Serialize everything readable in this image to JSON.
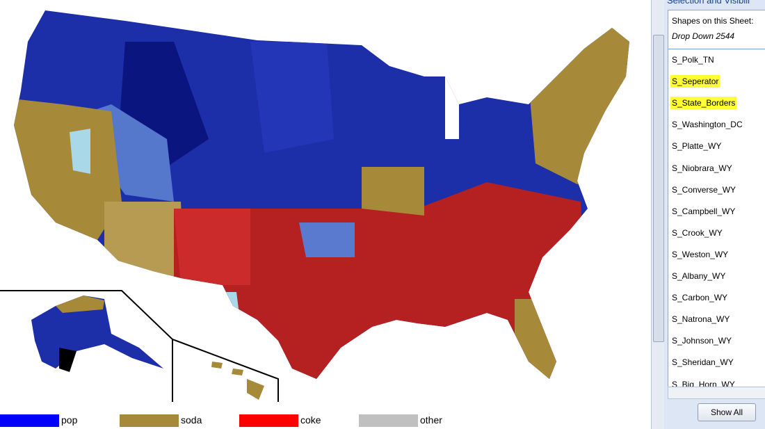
{
  "legend": [
    {
      "label": "pop",
      "color": "#0000ff"
    },
    {
      "label": "soda",
      "color": "#a68a3a"
    },
    {
      "label": "coke",
      "color": "#ff0000"
    },
    {
      "label": "other",
      "color": "#c0c0c0"
    }
  ],
  "pane": {
    "title": "Selection and Visibili",
    "heading": "Shapes on this Sheet:",
    "items": [
      {
        "label": "Drop Down 2544",
        "italic": true
      },
      {
        "label": "S_Polk_TN"
      },
      {
        "label": "S_Seperator",
        "highlighted": true
      },
      {
        "label": "S_State_Borders",
        "highlighted": true
      },
      {
        "label": "S_Washington_DC"
      },
      {
        "label": "S_Platte_WY"
      },
      {
        "label": "S_Niobrara_WY"
      },
      {
        "label": "S_Converse_WY"
      },
      {
        "label": "S_Campbell_WY"
      },
      {
        "label": "S_Crook_WY"
      },
      {
        "label": "S_Weston_WY"
      },
      {
        "label": "S_Albany_WY"
      },
      {
        "label": "S_Carbon_WY"
      },
      {
        "label": "S_Natrona_WY"
      },
      {
        "label": "S_Johnson_WY"
      },
      {
        "label": "S_Sheridan_WY"
      },
      {
        "label": "S_Big_Horn_WY"
      }
    ],
    "button": "Show All"
  }
}
